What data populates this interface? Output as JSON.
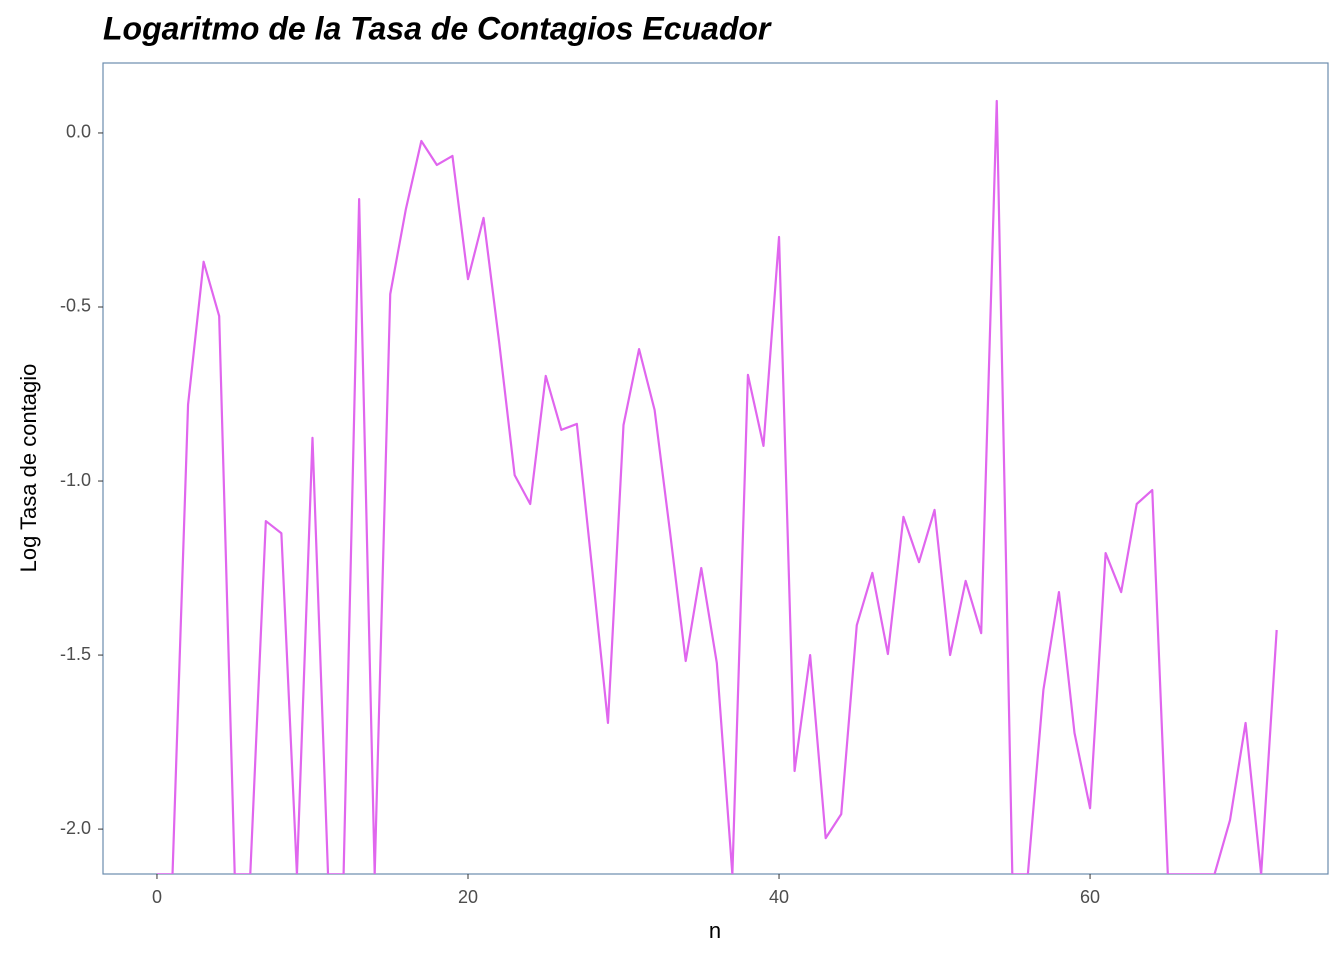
{
  "chart_data": {
    "type": "line",
    "title": "Logaritmo de la Tasa de Contagios Ecuador",
    "x_label": "n",
    "y_label": "Log Tasa de contagio",
    "x": [
      0,
      1,
      2,
      3,
      4,
      5,
      6,
      7,
      8,
      9,
      10,
      11,
      12,
      13,
      14,
      15,
      16,
      17,
      18,
      19,
      20,
      21,
      22,
      23,
      24,
      25,
      26,
      27,
      28,
      29,
      30,
      31,
      32,
      33,
      34,
      35,
      36,
      37,
      38,
      39,
      40,
      41,
      42,
      43,
      44,
      45,
      46,
      47,
      48,
      49,
      50,
      51,
      52,
      53,
      54,
      55,
      56,
      57,
      58,
      59,
      60,
      61,
      62,
      63,
      64,
      65,
      66,
      67,
      68,
      69,
      70,
      71,
      72
    ],
    "series": [
      {
        "name": "Log Tasa de contagio",
        "color": "#e066ee",
        "values": [
          -2.13,
          -2.13,
          -0.78,
          -0.37,
          -0.526,
          -2.13,
          -2.13,
          -1.115,
          -1.15,
          -2.13,
          -0.876,
          -2.13,
          -2.13,
          -0.19,
          -2.13,
          -0.463,
          -0.22,
          -0.023,
          -0.092,
          -0.066,
          -0.42,
          -0.244,
          -0.6,
          -0.983,
          -1.066,
          -0.698,
          -0.853,
          -0.836,
          -1.26,
          -1.695,
          -0.839,
          -0.621,
          -0.796,
          -1.15,
          -1.517,
          -1.25,
          -1.523,
          -2.13,
          -0.695,
          -0.899,
          -0.299,
          -1.833,
          -1.5,
          -2.026,
          -1.957,
          -1.414,
          -1.264,
          -1.497,
          -1.103,
          -1.233,
          -1.083,
          -1.5,
          -1.287,
          -1.437,
          0.092,
          -2.13,
          -2.13,
          -1.6,
          -1.319,
          -1.724,
          -1.94,
          -1.207,
          -1.319,
          -1.066,
          -1.026,
          -2.13,
          -2.13,
          -2.13,
          -2.13,
          -1.974,
          -1.695,
          -2.13,
          -1.428
        ]
      }
    ],
    "xlim": [
      -3.47,
      75.3
    ],
    "ylim": [
      -2.129,
      0.201
    ],
    "xticks": [
      0,
      20,
      40,
      60
    ],
    "yticks": [
      {
        "value": 0,
        "label": "0.0"
      },
      -0.5,
      {
        "value": -1,
        "label": "-1.0"
      },
      -1.5,
      {
        "value": -2,
        "label": "-2.0"
      }
    ]
  }
}
